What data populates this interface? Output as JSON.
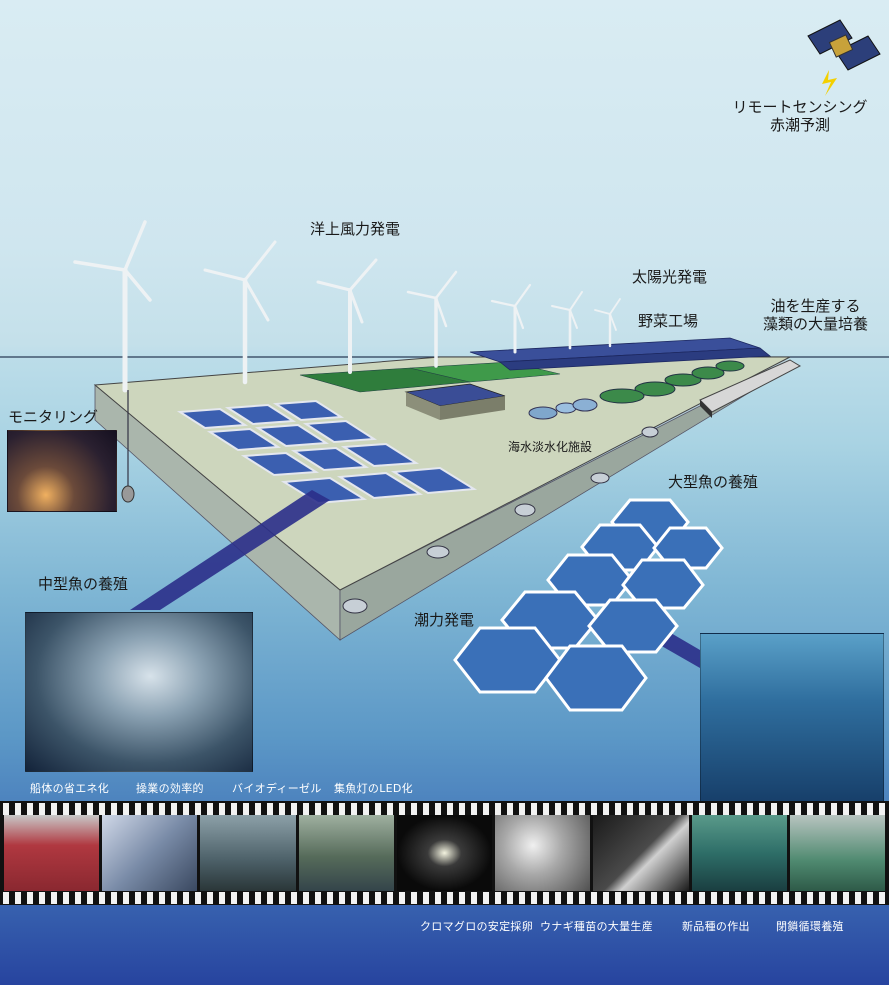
{
  "labels": {
    "remote_sensing": "リモートセンシング",
    "red_tide": "赤潮予測",
    "offshore_wind": "洋上風力発電",
    "solar": "太陽光発電",
    "vegetable_factory": "野菜工場",
    "algae_line1": "油を生産する",
    "algae_line2": "藻類の大量培養",
    "monitoring": "モニタリング",
    "desalination": "海水淡水化施設",
    "large_fish": "大型魚の養殖",
    "medium_fish": "中型魚の養殖",
    "tidal": "潮力発電"
  },
  "captions": {
    "top": [
      "船体の省エネ化",
      "操業の効率的",
      "バイオディーゼル",
      "集魚灯のLED化"
    ],
    "bottom": [
      "クロマグロの安定採卵",
      "ウナギ種苗の大量生産",
      "新品種の作出",
      "閉鎖循環養殖"
    ]
  },
  "colors": {
    "sky": "#d6eaf2",
    "ocean": "#27449f",
    "platform": "#c9d2b8",
    "pool": "#3b5fb0",
    "hexagon": "#3a70b8"
  }
}
